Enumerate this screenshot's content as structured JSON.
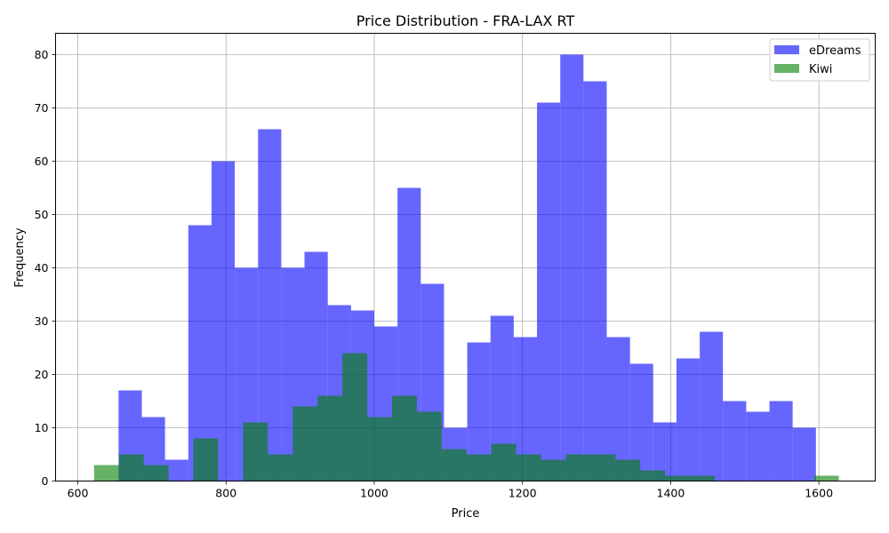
{
  "chart_data": {
    "type": "bar",
    "subtype": "histogram",
    "title": "Price Distribution - FRA-LAX RT",
    "xlabel": "Price",
    "ylabel": "Frequency",
    "xlim": [
      570,
      1676
    ],
    "ylim": [
      0,
      84
    ],
    "xticks": [
      600,
      800,
      1000,
      1200,
      1400,
      1600
    ],
    "yticks": [
      0,
      10,
      20,
      30,
      40,
      50,
      60,
      70,
      80
    ],
    "grid": true,
    "legend_position": "top-right",
    "series": [
      {
        "name": "eDreams",
        "color": "#0000ff",
        "opacity": 0.6,
        "bin_edges": [
          655,
          686.4,
          717.7,
          749.1,
          780.5,
          811.8,
          843.2,
          874.6,
          905.9,
          937.3,
          968.7,
          1000,
          1031.4,
          1062.8,
          1094.1,
          1125.5,
          1156.9,
          1188.2,
          1219.6,
          1251,
          1282.3,
          1313.7,
          1345.1,
          1376.4,
          1407.8,
          1439.2,
          1470.5,
          1501.9,
          1533.3,
          1564.6,
          1596
        ],
        "values": [
          17,
          12,
          4,
          48,
          60,
          40,
          66,
          40,
          43,
          33,
          32,
          29,
          55,
          37,
          10,
          26,
          31,
          27,
          71,
          80,
          75,
          27,
          22,
          11,
          23,
          28,
          15,
          13,
          15,
          10
        ]
      },
      {
        "name": "Kiwi",
        "color": "#008000",
        "opacity": 0.6,
        "bin_edges": [
          622,
          655.5,
          689,
          722.5,
          756,
          789.5,
          823,
          856.5,
          890,
          923.5,
          957,
          990.5,
          1024,
          1057.5,
          1091,
          1124.5,
          1158,
          1191.5,
          1225,
          1258.5,
          1292,
          1325.5,
          1359,
          1392.5,
          1426,
          1459.5,
          1493,
          1526.5,
          1560,
          1593.5,
          1627
        ],
        "values": [
          3,
          5,
          3,
          0,
          8,
          0,
          11,
          5,
          14,
          16,
          24,
          12,
          16,
          13,
          6,
          5,
          7,
          5,
          4,
          5,
          5,
          4,
          2,
          1,
          1,
          0,
          0,
          0,
          0,
          1
        ]
      }
    ]
  }
}
